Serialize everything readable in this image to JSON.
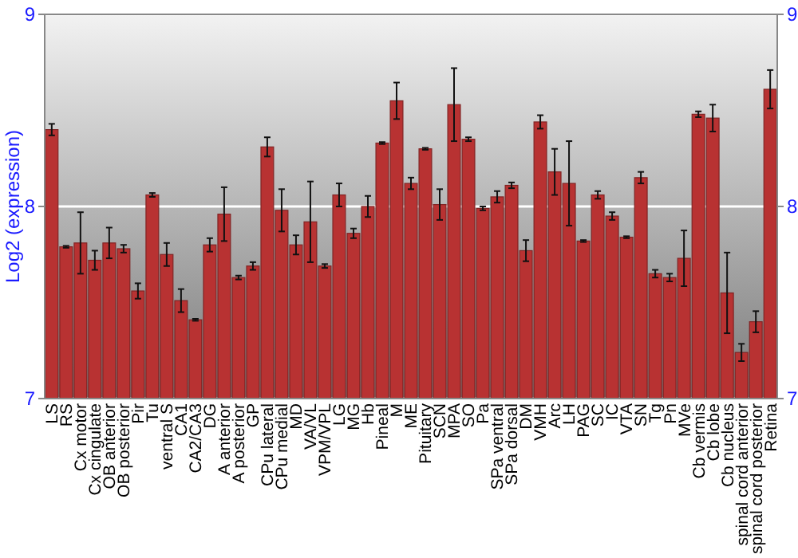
{
  "chart_data": {
    "type": "bar",
    "ylabel": "Log2 (expression)",
    "categories": [
      "LS",
      "RS",
      "Cx motor",
      "Cx cingulate",
      "OB anterior",
      "OB posterior",
      "Pir",
      "Tu",
      "ventral S",
      "CA1",
      "CA2/CA3",
      "DG",
      "A anterior",
      "A posterior",
      "GP",
      "CPu lateral",
      "CPu medial",
      "MD",
      "VA/VL",
      "VPM/VPL",
      "LG",
      "MG",
      "Hb",
      "Pineal",
      "M",
      "ME",
      "Pituitary",
      "SCN",
      "MPA",
      "SO",
      "Pa",
      "SPa ventral",
      "SPa dorsal",
      "DM",
      "VMH",
      "Arc",
      "LH",
      "PAG",
      "SC",
      "IC",
      "VTA",
      "SN",
      "Tg",
      "Pn",
      "MVe",
      "Cb vermis",
      "Cb lobe",
      "Cb nucleus",
      "spinal cord anterior",
      "spinal cord posterior",
      "Retina"
    ],
    "series": [
      {
        "color": "#b83232",
        "values": [
          8.4,
          7.79,
          7.81,
          7.72,
          7.81,
          7.78,
          7.56,
          8.06,
          7.75,
          7.51,
          7.41,
          7.8,
          7.96,
          7.63,
          7.69,
          8.31,
          7.98,
          7.8,
          7.92,
          7.69,
          8.06,
          7.86,
          8.0,
          8.33,
          8.55,
          8.12,
          8.3,
          8.01,
          8.53,
          8.35,
          7.99,
          8.05,
          8.11,
          7.77,
          8.44,
          8.18,
          8.12,
          7.82,
          8.06,
          7.95,
          7.84,
          8.15,
          7.65,
          7.63,
          7.73,
          8.48,
          8.46,
          7.55,
          7.24,
          7.4,
          8.61
        ],
        "errors": [
          0.03,
          0.005,
          0.16,
          0.05,
          0.08,
          0.02,
          0.04,
          0.01,
          0.06,
          0.06,
          0.005,
          0.035,
          0.14,
          0.01,
          0.02,
          0.05,
          0.11,
          0.05,
          0.21,
          0.01,
          0.06,
          0.025,
          0.055,
          0.005,
          0.095,
          0.03,
          0.005,
          0.08,
          0.19,
          0.01,
          0.01,
          0.03,
          0.015,
          0.055,
          0.035,
          0.12,
          0.22,
          0.005,
          0.02,
          0.02,
          0.005,
          0.03,
          0.02,
          0.02,
          0.145,
          0.015,
          0.07,
          0.21,
          0.045,
          0.055,
          0.1
        ]
      }
    ],
    "ylim": [
      7,
      9
    ],
    "yticks": [
      7,
      8,
      9
    ],
    "y2lim": [
      7,
      9
    ],
    "y2ticks": [
      7,
      8,
      9
    ],
    "grid": "y"
  }
}
